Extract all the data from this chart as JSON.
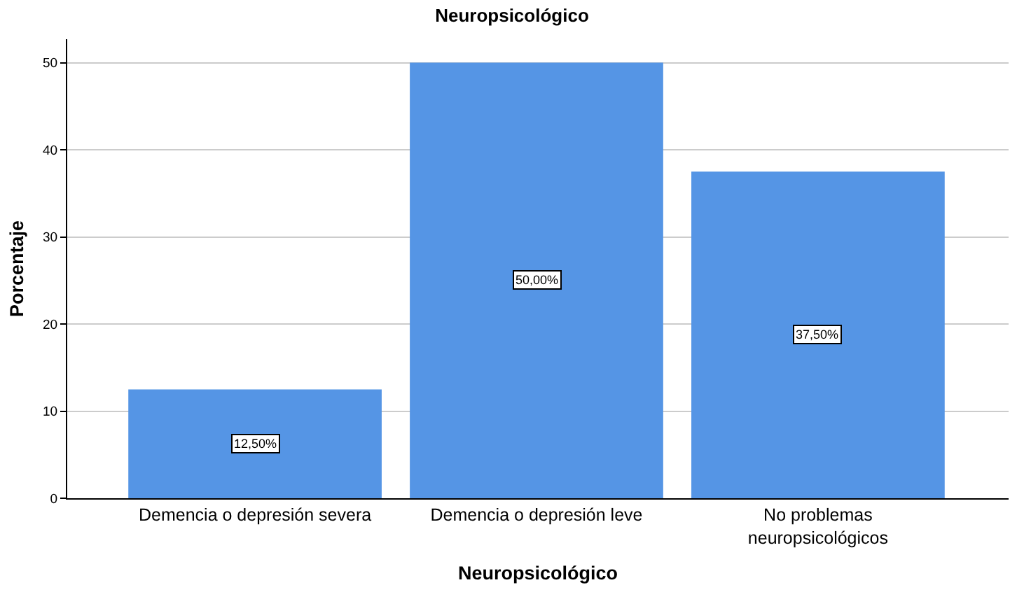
{
  "chart_data": {
    "type": "bar",
    "title": "Neuropsicológico",
    "xlabel": "Neuropsicológico",
    "ylabel": "Porcentaje",
    "categories": [
      "Demencia o depresión severa",
      "Demencia o depresión leve",
      "No problemas neuropsicológicos"
    ],
    "values": [
      12.5,
      50,
      37.5
    ],
    "color": "#5595e5",
    "value_labels": [
      "12,50%",
      "50,00%",
      "37,50%"
    ],
    "ylim": [
      0,
      52.7
    ],
    "yticks": [
      0,
      10,
      20,
      30,
      40,
      50
    ],
    "grid": "y"
  }
}
